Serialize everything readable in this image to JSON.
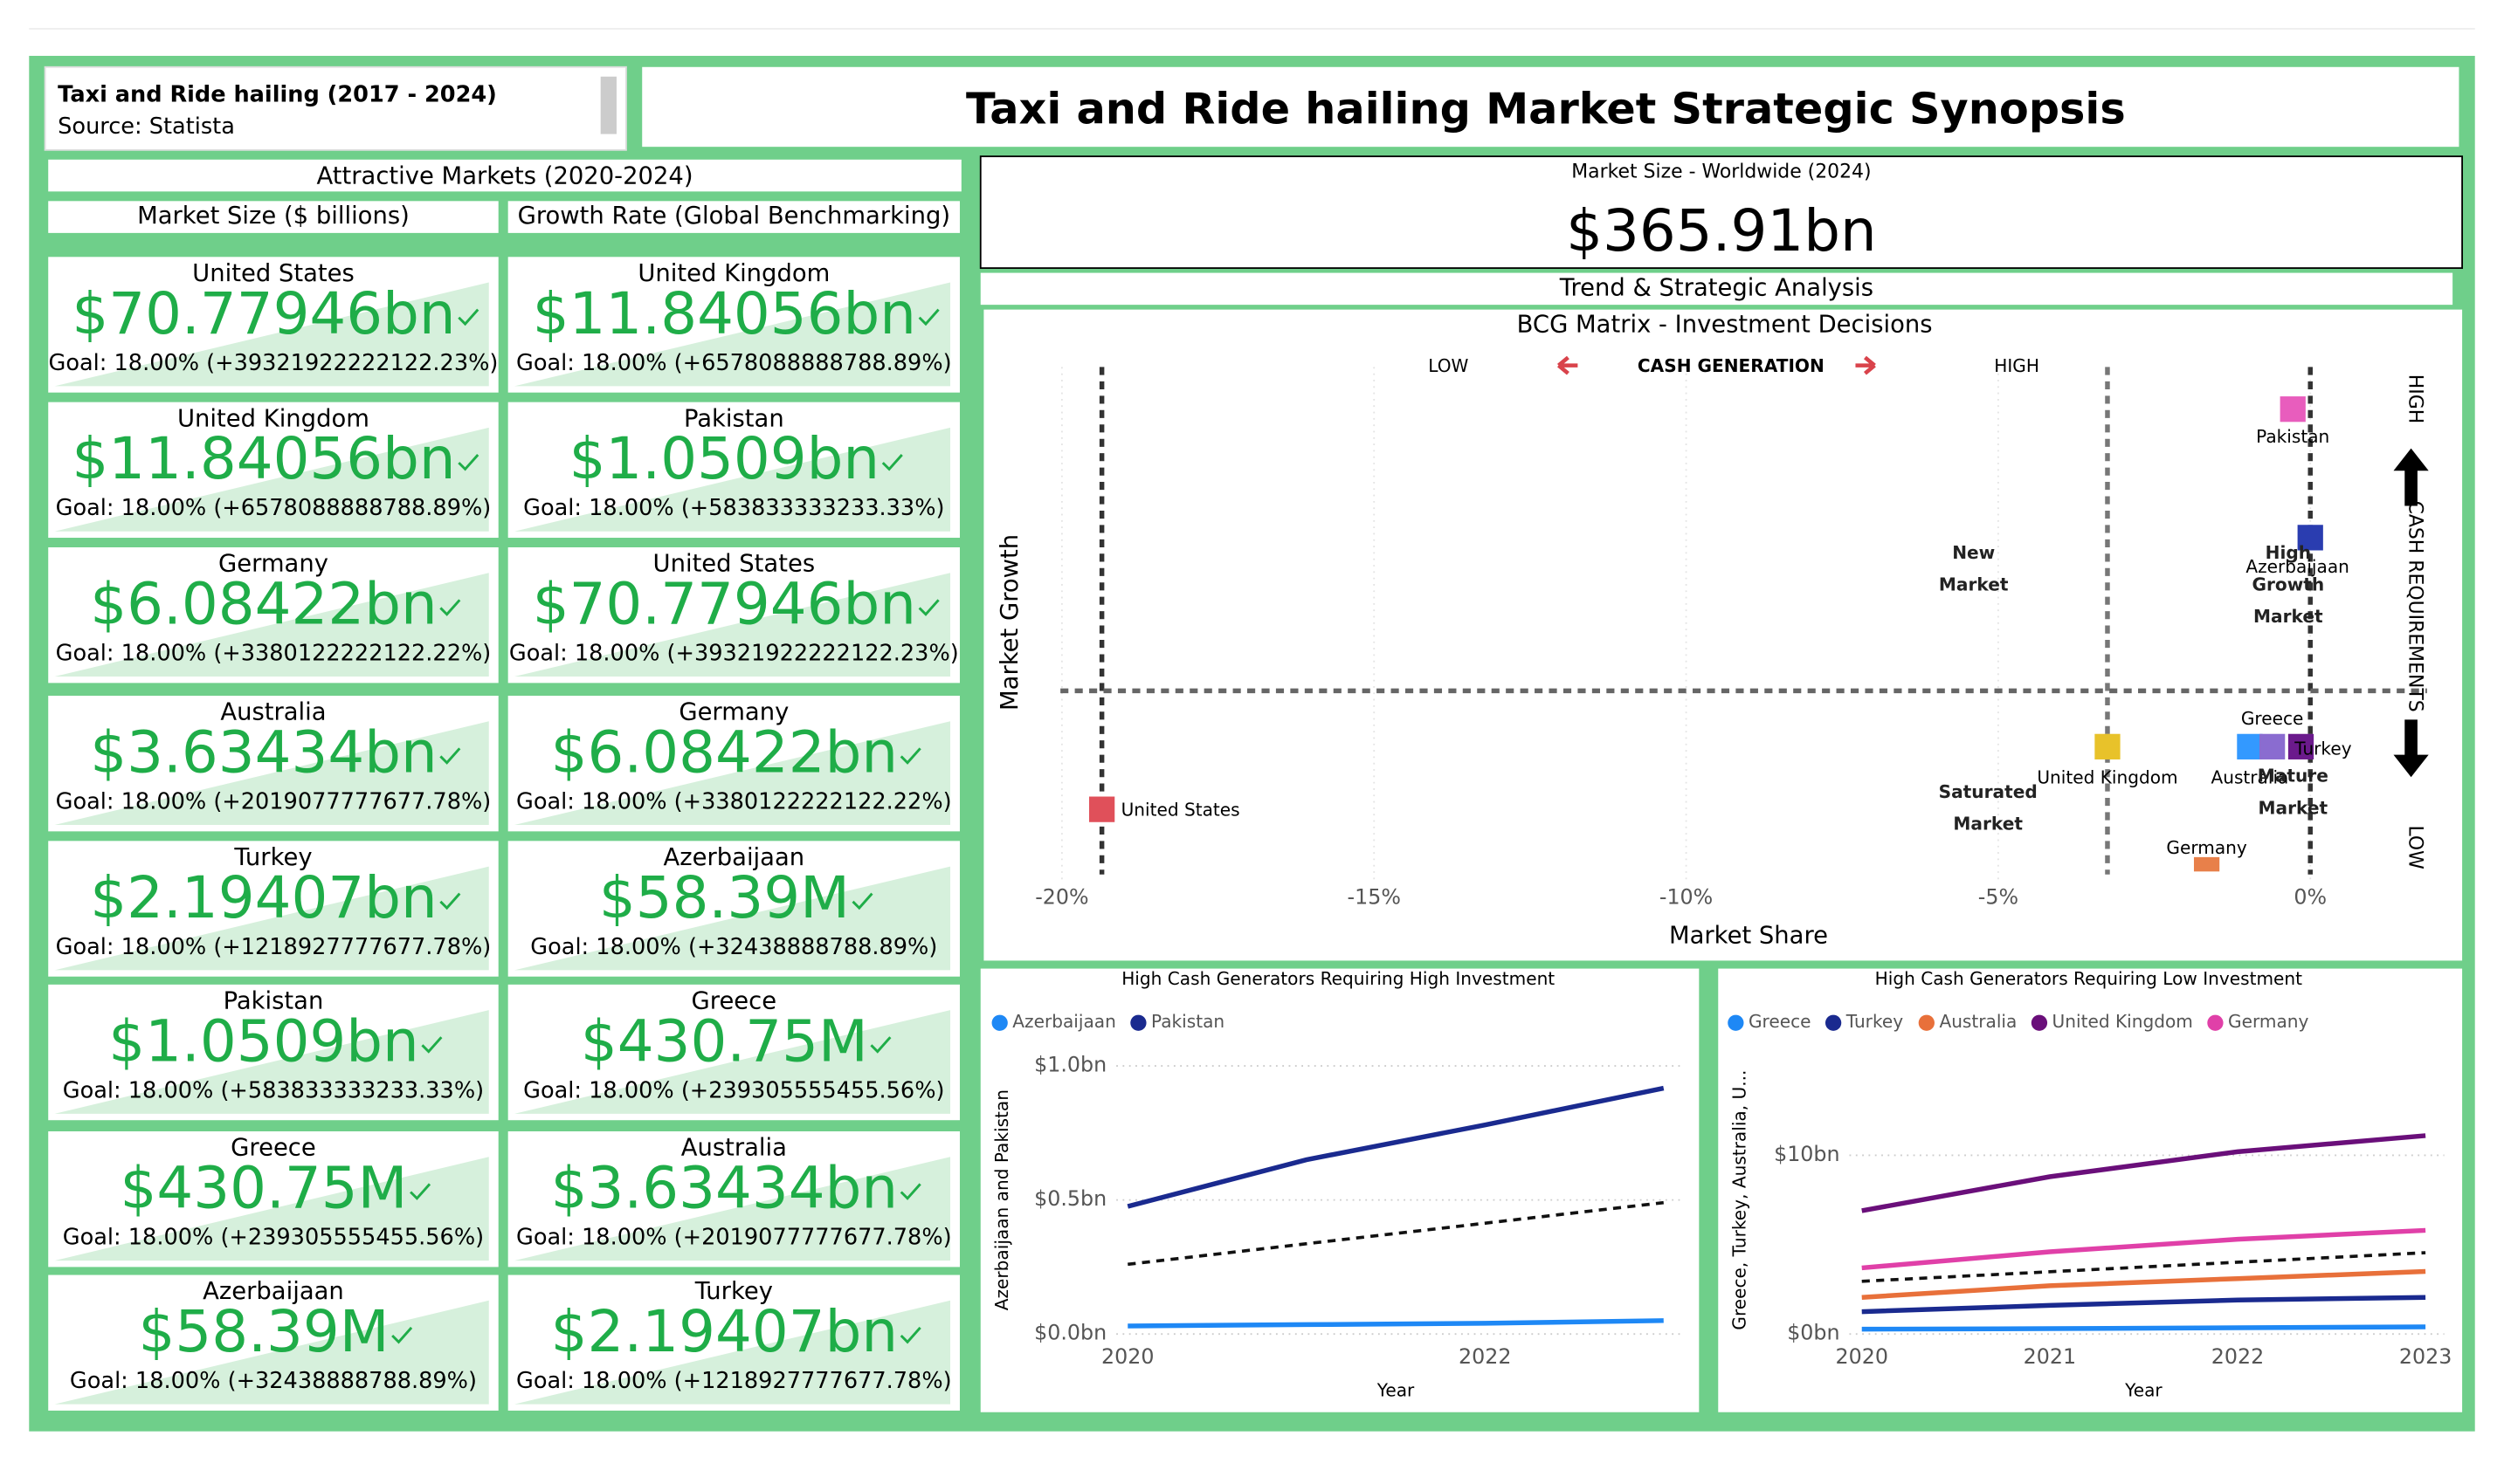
{
  "header": {
    "title": "Taxi and Ride hailing (2017 - 2024)",
    "source": "Source: Statista",
    "main_title": "Taxi and Ride hailing Market Strategic Synopsis"
  },
  "markets": {
    "title": "Attractive Markets (2020-2024)",
    "columns": [
      {
        "heading": "Market Size ($ billions)",
        "cards": [
          {
            "country": "United States",
            "value": "$70.77946bn",
            "goal": "Goal: 18.00% (+39321922222122.23%)"
          },
          {
            "country": "United Kingdom",
            "value": "$11.84056bn",
            "goal": "Goal: 18.00% (+6578088888788.89%)"
          },
          {
            "country": "Germany",
            "value": "$6.08422bn",
            "goal": "Goal: 18.00% (+3380122222122.22%)"
          },
          {
            "country": "Australia",
            "value": "$3.63434bn",
            "goal": "Goal: 18.00% (+2019077777677.78%)"
          },
          {
            "country": "Turkey",
            "value": "$2.19407bn",
            "goal": "Goal: 18.00% (+1218927777677.78%)"
          },
          {
            "country": "Pakistan",
            "value": "$1.0509bn",
            "goal": "Goal: 18.00% (+583833333233.33%)"
          },
          {
            "country": "Greece",
            "value": "$430.75M",
            "goal": "Goal: 18.00% (+239305555455.56%)"
          },
          {
            "country": "Azerbaijaan",
            "value": "$58.39M",
            "goal": "Goal: 18.00% (+32438888788.89%)"
          }
        ]
      },
      {
        "heading": "Growth Rate (Global Benchmarking)",
        "cards": [
          {
            "country": "United Kingdom",
            "value": "$11.84056bn",
            "goal": "Goal: 18.00% (+6578088888788.89%)"
          },
          {
            "country": "Pakistan",
            "value": "$1.0509bn",
            "goal": "Goal: 18.00% (+583833333233.33%)"
          },
          {
            "country": "United States",
            "value": "$70.77946bn",
            "goal": "Goal: 18.00% (+39321922222122.23%)"
          },
          {
            "country": "Germany",
            "value": "$6.08422bn",
            "goal": "Goal: 18.00% (+3380122222122.22%)"
          },
          {
            "country": "Azerbaijaan",
            "value": "$58.39M",
            "goal": "Goal: 18.00% (+32438888788.89%)"
          },
          {
            "country": "Greece",
            "value": "$430.75M",
            "goal": "Goal: 18.00% (+239305555455.56%)"
          },
          {
            "country": "Australia",
            "value": "$3.63434bn",
            "goal": "Goal: 18.00% (+2019077777677.78%)"
          },
          {
            "country": "Turkey",
            "value": "$2.19407bn",
            "goal": "Goal: 18.00% (+1218927777677.78%)"
          }
        ]
      }
    ]
  },
  "worldwide": {
    "label": "Market Size - Worldwide (2024)",
    "value": "$365.91bn"
  },
  "analysis_title": "Trend & Strategic Analysis",
  "chart_data": [
    {
      "type": "scatter",
      "title": "BCG Matrix - Investment Decisions",
      "xlabel": "Market Share",
      "ylabel": "Market Growth",
      "xlim": [
        -21.15,
        1.87
      ],
      "xticks": [
        {
          "value": -20,
          "label": "-20%"
        },
        {
          "value": -15,
          "label": "-15%"
        },
        {
          "value": -10,
          "label": "-10%"
        },
        {
          "value": -5,
          "label": "-5%"
        },
        {
          "value": 0,
          "label": "0%"
        }
      ],
      "ylim": [
        0,
        100
      ],
      "grid": true,
      "reference_lines": {
        "x": [
          -19.36,
          -3.25,
          0
        ],
        "y": [
          38.5
        ]
      },
      "points": [
        {
          "name": "United States",
          "color": "#e0505a",
          "x": -19.36,
          "y": 16
        },
        {
          "name": "Pakistan",
          "color": "#e85dbd",
          "x": -0.28,
          "y": 92
        },
        {
          "name": "Azerbaijaan",
          "color": "#2a3db0",
          "x": 0,
          "y": 67.6
        },
        {
          "name": "United Kingdom",
          "color": "#e8c22a",
          "x": -3.25,
          "y": 27.9
        },
        {
          "name": "Australia",
          "color": "#3399ff",
          "x": -0.97,
          "y": 27.9
        },
        {
          "name": "Greece",
          "color": "#8a6cd0",
          "x": -0.61,
          "y": 27.9
        },
        {
          "name": "Turkey",
          "color": "#6b1a8c",
          "x": -0.15,
          "y": 27.9
        },
        {
          "name": "Germany",
          "color": "#e8804a",
          "x": -1.66,
          "y": 4.5
        }
      ],
      "quadrants": [
        "New Market",
        "High Growth Market",
        "Saturated Market",
        "Mature Market"
      ],
      "cash_generation": [
        "LOW",
        "CASH GENERATION",
        "HIGH"
      ],
      "cash_requirements": [
        "HIGH",
        "CASH REQUIREMENTS",
        "LOW"
      ]
    },
    {
      "type": "line",
      "title": "High Cash Generators Requiring High Investment",
      "xlabel": "Year",
      "ylabel": "Azerbaijaan and Pakistan",
      "x": [
        2020,
        2021,
        2022,
        2023
      ],
      "xlim": [
        2019.9,
        2023.1
      ],
      "xticks": [
        2020,
        2022
      ],
      "ylim": [
        0,
        1.05
      ],
      "yticks": [
        {
          "value": 0,
          "label": "$0.0bn"
        },
        {
          "value": 0.5,
          "label": "$0.5bn"
        },
        {
          "value": 1,
          "label": "$1.0bn"
        }
      ],
      "series": [
        {
          "name": "Azerbaijaan",
          "color": "#1e88f5",
          "values": [
            0.03,
            0.035,
            0.04,
            0.05
          ]
        },
        {
          "name": "Pakistan",
          "color": "#1a2a8f",
          "values": [
            0.476,
            0.65,
            0.78,
            0.917
          ]
        }
      ],
      "trend": {
        "x": [
          2020,
          2023
        ],
        "values": [
          0.26,
          0.49
        ]
      }
    },
    {
      "type": "line",
      "title": "High Cash Generators Requiring Low Investment",
      "xlabel": "Year",
      "ylabel": "Greece, Turkey, Australia, U...",
      "x": [
        2020,
        2021,
        2022,
        2023
      ],
      "xlim": [
        2019.9,
        2023.1
      ],
      "xticks": [
        2020,
        2021,
        2022,
        2023
      ],
      "ylim": [
        0,
        12.5
      ],
      "yticks": [
        {
          "value": 0,
          "label": "$0bn"
        },
        {
          "value": 10,
          "label": "$10bn"
        }
      ],
      "series": [
        {
          "name": "Greece",
          "color": "#1e88f5",
          "values": [
            0.27,
            0.3,
            0.35,
            0.4
          ]
        },
        {
          "name": "Turkey",
          "color": "#1a2a8f",
          "values": [
            1.25,
            1.6,
            1.9,
            2.05
          ]
        },
        {
          "name": "Australia",
          "color": "#e8703a",
          "values": [
            2.05,
            2.7,
            3.1,
            3.5
          ]
        },
        {
          "name": "United Kingdom",
          "color": "#6a0f7a",
          "values": [
            6.9,
            8.8,
            10.2,
            11.1
          ]
        },
        {
          "name": "Germany",
          "color": "#e040a8",
          "values": [
            3.7,
            4.6,
            5.3,
            5.8
          ]
        }
      ],
      "trend": {
        "x": [
          2020,
          2023
        ],
        "values": [
          2.95,
          4.55
        ]
      }
    }
  ]
}
